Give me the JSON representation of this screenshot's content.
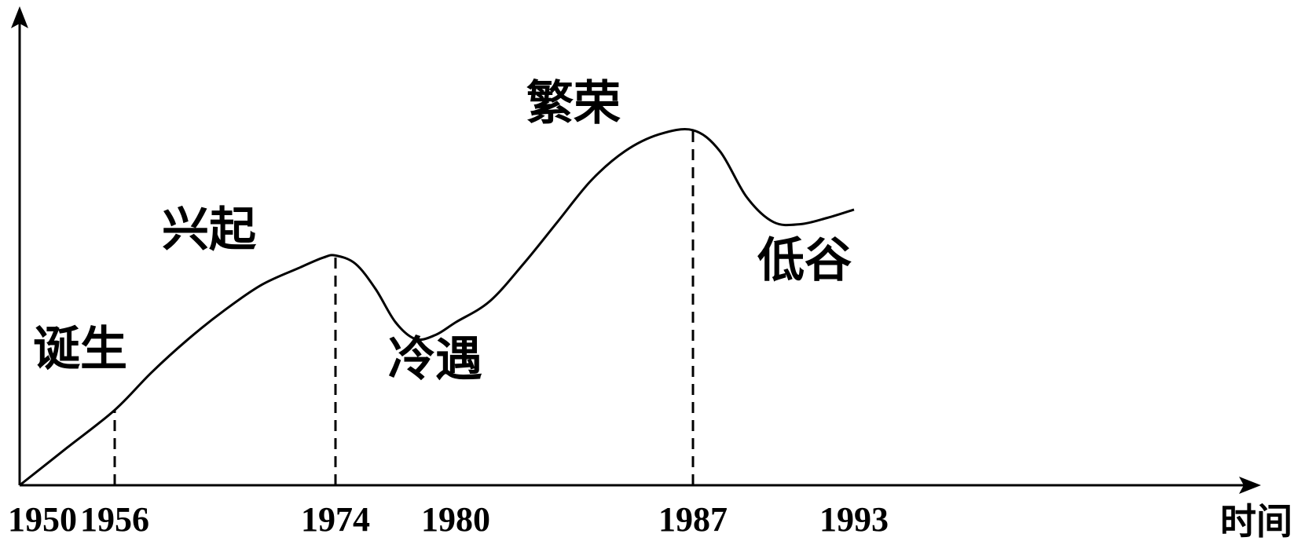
{
  "chart_data": {
    "type": "line",
    "title": "",
    "xlabel": "时间",
    "ylabel": "",
    "grid": false,
    "legend": "none",
    "line_color": "#000000",
    "x_ticks": [
      "1950",
      "1956",
      "1974",
      "1980",
      "1987",
      "1993"
    ],
    "marked_years": [
      1956,
      1974,
      1987
    ],
    "stages": [
      {
        "label": "诞生",
        "year": 1953
      },
      {
        "label": "兴起",
        "year": 1965
      },
      {
        "label": "冷遇",
        "year": 1977
      },
      {
        "label": "繁荣",
        "year": 1984
      },
      {
        "label": "低谷",
        "year": 1990
      }
    ],
    "series": [
      {
        "x": [
          1950,
          1953,
          1956,
          1959,
          1962,
          1965,
          1968,
          1971,
          1973,
          1974,
          1975,
          1976,
          1977,
          1978,
          1979,
          1980,
          1981,
          1982,
          1983,
          1984,
          1985,
          1986,
          1987,
          1988,
          1989,
          1990,
          1991,
          1992,
          1993
        ],
        "y": [
          0,
          0.9,
          1.8,
          2.7,
          3.5,
          4.2,
          4.8,
          5.2,
          5.45,
          5.5,
          5.3,
          4.7,
          3.9,
          3.5,
          3.6,
          3.9,
          4.4,
          5.3,
          6.3,
          7.3,
          8.0,
          8.4,
          8.5,
          8.0,
          6.9,
          6.3,
          6.25,
          6.4,
          6.6
        ]
      }
    ],
    "xlim": [
      1950,
      1994
    ],
    "ylim": [
      0,
      10
    ]
  }
}
